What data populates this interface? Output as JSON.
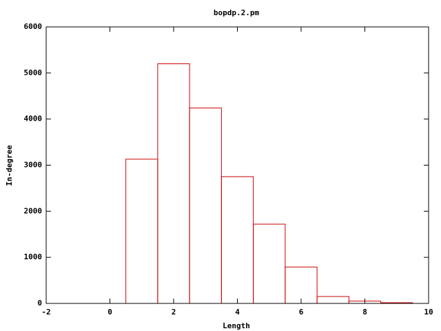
{
  "chart_data": {
    "type": "histogram",
    "title": "bopdp.2.pm",
    "xlabel": "Length",
    "ylabel": "In-degree",
    "bins": [
      0.5,
      1.5,
      2.5,
      3.5,
      4.5,
      5.5,
      6.5,
      7.5,
      8.5,
      9.5
    ],
    "values": [
      3130,
      5200,
      4240,
      2750,
      1720,
      790,
      150,
      50,
      15
    ],
    "color": "#cc0000",
    "xlim": [
      -2,
      10
    ],
    "xticks": [
      -2,
      0,
      2,
      4,
      6,
      8,
      10
    ],
    "ylim": [
      0,
      6000
    ],
    "yticks": [
      0,
      1000,
      2000,
      3000,
      4000,
      5000,
      6000
    ]
  }
}
